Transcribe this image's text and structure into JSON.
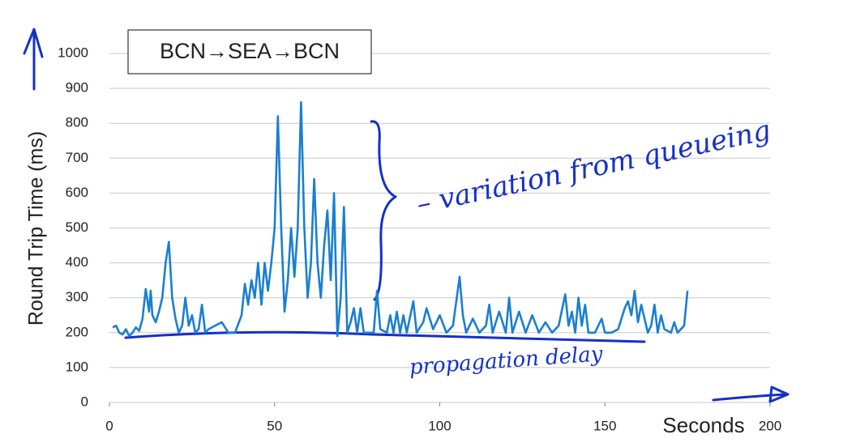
{
  "chart_data": {
    "type": "line",
    "title": "BCN→SEA→BCN",
    "x_label": "Seconds",
    "y_label": "Round Trip Time (ms)",
    "annotations": [
      "– variation from queueing",
      "propagation delay"
    ],
    "color": "#1a7fd0",
    "grid": true,
    "xlim": [
      0,
      200
    ],
    "xticks": [
      0,
      50,
      100,
      150,
      200
    ],
    "ylim": [
      0,
      1000
    ],
    "yticks": [
      0,
      100,
      200,
      300,
      400,
      500,
      600,
      700,
      800,
      900,
      1000
    ],
    "x": [
      1,
      2,
      3,
      4,
      5,
      6,
      7,
      8,
      9,
      10,
      11,
      12,
      12.5,
      13,
      14,
      15,
      16,
      17,
      18,
      19,
      20,
      21,
      22,
      23,
      24,
      25,
      26,
      27,
      28,
      29,
      30,
      32,
      34,
      36,
      38,
      40,
      41,
      42,
      43,
      44,
      45,
      46,
      47,
      48,
      49,
      50,
      51,
      52,
      53,
      54,
      55,
      56,
      57,
      58,
      59,
      60,
      61,
      62,
      63,
      64,
      65,
      66,
      67,
      68,
      69,
      70,
      71,
      72,
      73,
      74,
      75,
      76,
      77,
      78,
      80,
      81,
      82,
      84,
      85,
      86,
      87,
      88,
      89,
      90,
      92,
      93,
      95,
      96,
      98,
      100,
      102,
      104,
      106,
      107,
      108,
      110,
      112,
      114,
      115,
      116,
      118,
      120,
      121,
      122,
      124,
      126,
      128,
      130,
      132,
      134,
      136,
      138,
      139,
      140,
      141,
      142,
      143,
      144,
      145,
      147,
      149,
      150,
      152,
      154,
      156,
      157,
      158,
      159,
      160,
      161,
      163,
      164,
      165,
      166,
      167,
      168,
      170,
      171,
      172,
      174,
      175
    ],
    "values": [
      215,
      220,
      200,
      195,
      210,
      190,
      200,
      215,
      205,
      240,
      325,
      260,
      320,
      250,
      230,
      260,
      300,
      400,
      460,
      300,
      240,
      200,
      220,
      300,
      220,
      250,
      200,
      210,
      280,
      200,
      210,
      220,
      230,
      200,
      200,
      250,
      340,
      280,
      350,
      300,
      400,
      280,
      400,
      320,
      400,
      500,
      820,
      500,
      260,
      350,
      500,
      360,
      500,
      860,
      500,
      300,
      400,
      640,
      400,
      300,
      450,
      550,
      350,
      600,
      190,
      300,
      560,
      200,
      230,
      270,
      200,
      270,
      200,
      200,
      200,
      320,
      210,
      200,
      250,
      200,
      260,
      200,
      250,
      200,
      290,
      200,
      230,
      270,
      210,
      250,
      200,
      220,
      360,
      250,
      200,
      240,
      200,
      220,
      280,
      200,
      260,
      200,
      300,
      200,
      260,
      200,
      250,
      200,
      230,
      200,
      220,
      310,
      220,
      260,
      200,
      300,
      220,
      280,
      200,
      200,
      240,
      200,
      200,
      210,
      270,
      290,
      250,
      320,
      230,
      280,
      200,
      220,
      280,
      200,
      250,
      210,
      200,
      230,
      200,
      220,
      320
    ]
  }
}
